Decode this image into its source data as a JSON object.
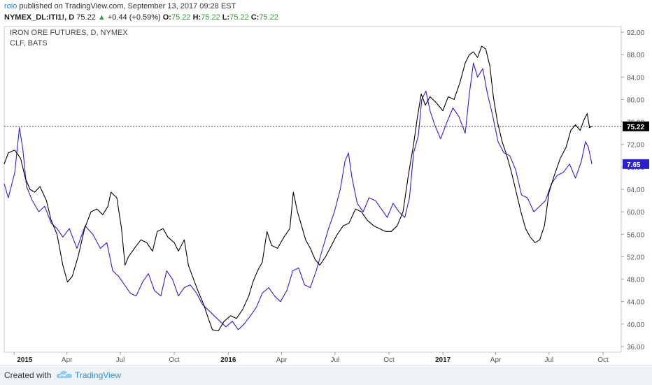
{
  "header": {
    "user": "roio",
    "published_text": "published on TradingView.com, September 13, 2017 09:28 EST",
    "symbol": "NYMEX_DL:ITI1!, D",
    "last": "75.22",
    "change_arrow": "▲",
    "change": "+0.44 (+0.59%)",
    "o_label": "O:",
    "o_value": "75.22",
    "h_label": "H:",
    "h_value": "75.22",
    "l_label": "L:",
    "l_value": "75.22",
    "c_label": "C:",
    "c_value": "75.22"
  },
  "footer": {
    "created_with": "Created with",
    "brand": "TradingView",
    "logo_icon": "tradingview-cloud-icon"
  },
  "colors": {
    "iron_ore_line": "#000000",
    "clf_line": "#2c1fd1",
    "price_tag_black": "#000000",
    "price_tag_blue": "#2c1fd1",
    "change_up": "#2e9e3a"
  },
  "chart_data": {
    "type": "line",
    "legend": [
      "IRON ORE FUTURES, D, NYMEX",
      "CLF, BATS"
    ],
    "legend_placement": "top-left",
    "x_tick_labels": [
      "2015",
      "Apr",
      "Jul",
      "Oct",
      "2016",
      "Apr",
      "Jul",
      "Oct",
      "2017",
      "Apr",
      "Jul",
      "Oct"
    ],
    "x_tick_dates": [
      "2015-01-01",
      "2015-04-01",
      "2015-07-01",
      "2015-10-01",
      "2016-01-01",
      "2016-04-01",
      "2016-07-01",
      "2016-10-01",
      "2017-01-01",
      "2017-04-01",
      "2017-07-01",
      "2017-10-01"
    ],
    "xlim": [
      "2014-12-15",
      "2017-11-01"
    ],
    "y_tick_labels": [
      "36.00",
      "40.00",
      "44.00",
      "48.00",
      "52.00",
      "56.00",
      "60.00",
      "64.00",
      "68.00",
      "72.00",
      "76.00",
      "80.00",
      "84.00",
      "88.00",
      "92.00"
    ],
    "ylim": [
      35,
      93
    ],
    "grid": false,
    "current_price_line": 75.22,
    "price_labels": [
      "75.22",
      "7.65"
    ],
    "series": [
      {
        "name": "IRON ORE FUTURES, D, NYMEX",
        "axis": "right",
        "points": [
          [
            "2014-12-15",
            68.5
          ],
          [
            "2014-12-22",
            70.5
          ],
          [
            "2015-01-02",
            71.0
          ],
          [
            "2015-01-12",
            69.5
          ],
          [
            "2015-01-20",
            66.0
          ],
          [
            "2015-01-28",
            64.0
          ],
          [
            "2015-02-05",
            63.5
          ],
          [
            "2015-02-14",
            64.5
          ],
          [
            "2015-02-25",
            62.0
          ],
          [
            "2015-03-05",
            58.5
          ],
          [
            "2015-03-15",
            56.0
          ],
          [
            "2015-03-25",
            50.5
          ],
          [
            "2015-04-02",
            47.5
          ],
          [
            "2015-04-10",
            48.5
          ],
          [
            "2015-04-20",
            52.0
          ],
          [
            "2015-05-01",
            57.0
          ],
          [
            "2015-05-12",
            60.0
          ],
          [
            "2015-05-22",
            60.5
          ],
          [
            "2015-06-01",
            59.5
          ],
          [
            "2015-06-10",
            61.0
          ],
          [
            "2015-06-15",
            63.5
          ],
          [
            "2015-06-25",
            62.5
          ],
          [
            "2015-07-03",
            57.0
          ],
          [
            "2015-07-09",
            50.5
          ],
          [
            "2015-07-15",
            52.0
          ],
          [
            "2015-07-25",
            53.5
          ],
          [
            "2015-08-05",
            55.0
          ],
          [
            "2015-08-15",
            54.5
          ],
          [
            "2015-08-25",
            53.0
          ],
          [
            "2015-09-02",
            56.5
          ],
          [
            "2015-09-12",
            57.0
          ],
          [
            "2015-09-20",
            55.5
          ],
          [
            "2015-10-01",
            54.5
          ],
          [
            "2015-10-08",
            53.0
          ],
          [
            "2015-10-18",
            55.0
          ],
          [
            "2015-10-25",
            50.5
          ],
          [
            "2015-11-01",
            48.5
          ],
          [
            "2015-11-10",
            46.0
          ],
          [
            "2015-11-20",
            43.5
          ],
          [
            "2015-11-28",
            41.0
          ],
          [
            "2015-12-05",
            39.0
          ],
          [
            "2015-12-15",
            38.8
          ],
          [
            "2015-12-25",
            40.5
          ],
          [
            "2016-01-05",
            41.5
          ],
          [
            "2016-01-15",
            41.0
          ],
          [
            "2016-01-25",
            42.5
          ],
          [
            "2016-02-05",
            45.0
          ],
          [
            "2016-02-12",
            47.5
          ],
          [
            "2016-02-20",
            49.5
          ],
          [
            "2016-02-28",
            51.0
          ],
          [
            "2016-03-07",
            56.5
          ],
          [
            "2016-03-15",
            54.0
          ],
          [
            "2016-03-25",
            53.5
          ],
          [
            "2016-04-05",
            55.5
          ],
          [
            "2016-04-15",
            57.0
          ],
          [
            "2016-04-21",
            63.5
          ],
          [
            "2016-04-28",
            60.0
          ],
          [
            "2016-05-05",
            57.5
          ],
          [
            "2016-05-12",
            55.0
          ],
          [
            "2016-05-20",
            53.5
          ],
          [
            "2016-05-28",
            51.5
          ],
          [
            "2016-06-05",
            50.5
          ],
          [
            "2016-06-15",
            52.0
          ],
          [
            "2016-06-25",
            54.0
          ],
          [
            "2016-07-05",
            56.0
          ],
          [
            "2016-07-15",
            57.5
          ],
          [
            "2016-07-25",
            58.0
          ],
          [
            "2016-08-05",
            60.5
          ],
          [
            "2016-08-15",
            60.0
          ],
          [
            "2016-08-25",
            58.5
          ],
          [
            "2016-09-05",
            57.5
          ],
          [
            "2016-09-15",
            57.0
          ],
          [
            "2016-09-25",
            56.5
          ],
          [
            "2016-10-05",
            56.5
          ],
          [
            "2016-10-15",
            57.5
          ],
          [
            "2016-10-25",
            60.0
          ],
          [
            "2016-11-03",
            66.5
          ],
          [
            "2016-11-12",
            72.0
          ],
          [
            "2016-11-18",
            76.5
          ],
          [
            "2016-11-25",
            81.0
          ],
          [
            "2016-12-02",
            79.0
          ],
          [
            "2016-12-10",
            80.5
          ],
          [
            "2016-12-20",
            79.5
          ],
          [
            "2017-01-01",
            78.0
          ],
          [
            "2017-01-10",
            80.5
          ],
          [
            "2017-01-20",
            80.0
          ],
          [
            "2017-01-30",
            83.0
          ],
          [
            "2017-02-08",
            86.5
          ],
          [
            "2017-02-15",
            88.0
          ],
          [
            "2017-02-22",
            88.5
          ],
          [
            "2017-03-01",
            87.5
          ],
          [
            "2017-03-08",
            89.5
          ],
          [
            "2017-03-15",
            89.0
          ],
          [
            "2017-03-22",
            86.0
          ],
          [
            "2017-03-28",
            80.5
          ],
          [
            "2017-04-04",
            76.0
          ],
          [
            "2017-04-12",
            72.5
          ],
          [
            "2017-04-20",
            70.0
          ],
          [
            "2017-04-28",
            67.0
          ],
          [
            "2017-05-06",
            63.5
          ],
          [
            "2017-05-14",
            60.0
          ],
          [
            "2017-05-22",
            57.0
          ],
          [
            "2017-05-30",
            55.5
          ],
          [
            "2017-06-07",
            54.5
          ],
          [
            "2017-06-15",
            55.0
          ],
          [
            "2017-06-23",
            57.5
          ],
          [
            "2017-07-01",
            63.5
          ],
          [
            "2017-07-10",
            66.5
          ],
          [
            "2017-07-20",
            69.5
          ],
          [
            "2017-07-30",
            71.5
          ],
          [
            "2017-08-07",
            74.5
          ],
          [
            "2017-08-15",
            75.5
          ],
          [
            "2017-08-23",
            74.5
          ],
          [
            "2017-08-30",
            76.5
          ],
          [
            "2017-09-04",
            77.5
          ],
          [
            "2017-09-08",
            75.0
          ],
          [
            "2017-09-12",
            75.22
          ]
        ]
      },
      {
        "name": "CLF, BATS",
        "axis": "left",
        "points": [
          [
            "2014-12-15",
            65.0
          ],
          [
            "2014-12-22",
            62.5
          ],
          [
            "2015-01-02",
            67.0
          ],
          [
            "2015-01-10",
            75.0
          ],
          [
            "2015-01-16",
            71.0
          ],
          [
            "2015-01-22",
            64.5
          ],
          [
            "2015-02-01",
            62.0
          ],
          [
            "2015-02-12",
            60.0
          ],
          [
            "2015-02-22",
            61.0
          ],
          [
            "2015-03-05",
            58.0
          ],
          [
            "2015-03-15",
            57.0
          ],
          [
            "2015-03-25",
            55.5
          ],
          [
            "2015-04-05",
            57.0
          ],
          [
            "2015-04-18",
            53.5
          ],
          [
            "2015-05-02",
            57.5
          ],
          [
            "2015-05-15",
            56.0
          ],
          [
            "2015-05-28",
            53.5
          ],
          [
            "2015-06-08",
            54.5
          ],
          [
            "2015-06-18",
            49.5
          ],
          [
            "2015-06-28",
            48.5
          ],
          [
            "2015-07-08",
            47.0
          ],
          [
            "2015-07-18",
            45.5
          ],
          [
            "2015-07-28",
            45.0
          ],
          [
            "2015-08-08",
            47.5
          ],
          [
            "2015-08-18",
            49.0
          ],
          [
            "2015-08-28",
            46.0
          ],
          [
            "2015-09-08",
            45.0
          ],
          [
            "2015-09-18",
            49.5
          ],
          [
            "2015-09-28",
            48.0
          ],
          [
            "2015-10-08",
            45.0
          ],
          [
            "2015-10-18",
            46.5
          ],
          [
            "2015-10-28",
            47.0
          ],
          [
            "2015-11-08",
            45.5
          ],
          [
            "2015-11-18",
            43.5
          ],
          [
            "2015-11-28",
            42.5
          ],
          [
            "2015-12-08",
            41.5
          ],
          [
            "2015-12-18",
            40.5
          ],
          [
            "2015-12-28",
            39.5
          ],
          [
            "2016-01-08",
            40.5
          ],
          [
            "2016-01-18",
            39.0
          ],
          [
            "2016-01-28",
            40.0
          ],
          [
            "2016-02-08",
            41.5
          ],
          [
            "2016-02-18",
            43.0
          ],
          [
            "2016-02-28",
            45.5
          ],
          [
            "2016-03-10",
            46.5
          ],
          [
            "2016-03-20",
            45.0
          ],
          [
            "2016-03-30",
            44.0
          ],
          [
            "2016-04-10",
            46.0
          ],
          [
            "2016-04-20",
            49.5
          ],
          [
            "2016-04-30",
            50.0
          ],
          [
            "2016-05-10",
            47.0
          ],
          [
            "2016-05-20",
            46.5
          ],
          [
            "2016-05-30",
            49.5
          ],
          [
            "2016-06-10",
            53.5
          ],
          [
            "2016-06-20",
            57.0
          ],
          [
            "2016-06-30",
            60.0
          ],
          [
            "2016-07-10",
            64.0
          ],
          [
            "2016-07-18",
            69.0
          ],
          [
            "2016-07-24",
            70.5
          ],
          [
            "2016-07-30",
            66.0
          ],
          [
            "2016-08-08",
            61.5
          ],
          [
            "2016-08-18",
            60.0
          ],
          [
            "2016-08-28",
            62.5
          ],
          [
            "2016-09-08",
            62.0
          ],
          [
            "2016-09-18",
            60.5
          ],
          [
            "2016-09-28",
            59.0
          ],
          [
            "2016-10-08",
            61.5
          ],
          [
            "2016-10-18",
            60.0
          ],
          [
            "2016-10-28",
            59.0
          ],
          [
            "2016-11-05",
            62.5
          ],
          [
            "2016-11-12",
            70.5
          ],
          [
            "2016-11-20",
            73.5
          ],
          [
            "2016-11-26",
            80.0
          ],
          [
            "2016-12-03",
            81.5
          ],
          [
            "2016-12-10",
            78.0
          ],
          [
            "2016-12-18",
            75.5
          ],
          [
            "2016-12-28",
            73.0
          ],
          [
            "2017-01-08",
            76.0
          ],
          [
            "2017-01-18",
            78.5
          ],
          [
            "2017-01-28",
            77.0
          ],
          [
            "2017-02-08",
            74.0
          ],
          [
            "2017-02-15",
            81.0
          ],
          [
            "2017-02-22",
            86.5
          ],
          [
            "2017-03-01",
            84.0
          ],
          [
            "2017-03-10",
            85.5
          ],
          [
            "2017-03-18",
            81.0
          ],
          [
            "2017-03-26",
            77.5
          ],
          [
            "2017-04-05",
            72.5
          ],
          [
            "2017-04-15",
            70.5
          ],
          [
            "2017-04-25",
            70.0
          ],
          [
            "2017-05-05",
            67.5
          ],
          [
            "2017-05-15",
            63.0
          ],
          [
            "2017-05-25",
            62.5
          ],
          [
            "2017-06-05",
            60.0
          ],
          [
            "2017-06-15",
            61.0
          ],
          [
            "2017-06-25",
            62.0
          ],
          [
            "2017-07-05",
            65.0
          ],
          [
            "2017-07-15",
            66.5
          ],
          [
            "2017-07-25",
            67.0
          ],
          [
            "2017-08-05",
            68.5
          ],
          [
            "2017-08-15",
            66.0
          ],
          [
            "2017-08-25",
            69.0
          ],
          [
            "2017-09-01",
            72.5
          ],
          [
            "2017-09-06",
            71.5
          ],
          [
            "2017-09-12",
            68.5
          ]
        ]
      }
    ]
  }
}
